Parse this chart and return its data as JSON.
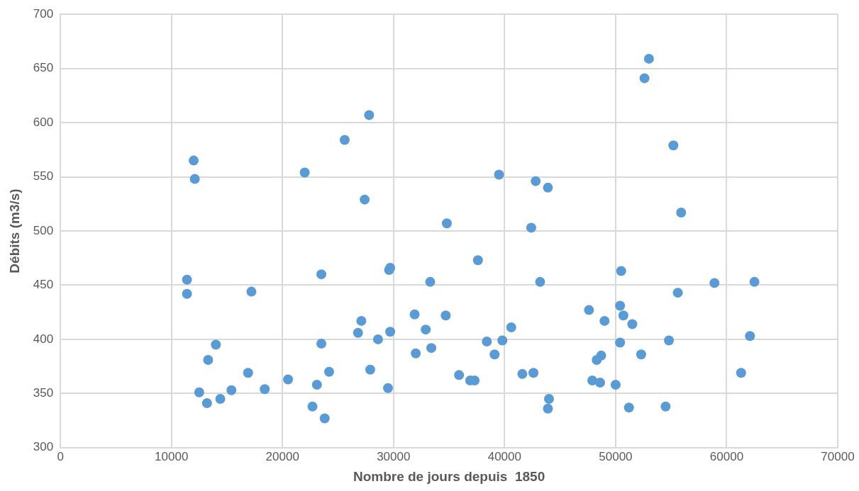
{
  "chart_data": {
    "type": "scatter",
    "xlabel": "Nombre de jours depuis  1850",
    "ylabel": "Débits (m3/s)",
    "xlim": [
      0,
      70000
    ],
    "xticks": [
      0,
      10000,
      20000,
      30000,
      40000,
      50000,
      60000,
      70000
    ],
    "ylim": [
      300,
      700
    ],
    "yticks": [
      300,
      350,
      400,
      450,
      500,
      550,
      600,
      650,
      700
    ],
    "grid": true,
    "legend": false,
    "marker": "circle",
    "series": [
      {
        "color": "#5b9bd5",
        "x": [
          11400,
          11400,
          12000,
          12100,
          12500,
          13200,
          13300,
          14000,
          14400,
          15400,
          16900,
          17200,
          18400,
          20500,
          22000,
          22700,
          23100,
          23500,
          23500,
          23800,
          24200,
          25600,
          26800,
          27100,
          27400,
          27800,
          27900,
          28600,
          29500,
          29600,
          29700,
          29700,
          31900,
          32000,
          32900,
          33300,
          33400,
          34700,
          34800,
          35900,
          36900,
          37300,
          37600,
          38400,
          39100,
          39500,
          39800,
          40600,
          41600,
          42400,
          42600,
          42800,
          43200,
          43900,
          44000,
          43900,
          47600,
          47900,
          48300,
          48600,
          48700,
          49000,
          50000,
          50400,
          50400,
          50500,
          50700,
          51200,
          51500,
          52300,
          52600,
          53000,
          54500,
          54800,
          55200,
          55600,
          55900,
          58900,
          61300,
          62100,
          62500
        ],
        "values": [
          455,
          442,
          565,
          548,
          351,
          341,
          381,
          395,
          345,
          353,
          369,
          444,
          354,
          363,
          554,
          338,
          358,
          396,
          460,
          327,
          370,
          584,
          406,
          417,
          529,
          607,
          372,
          400,
          355,
          464,
          466,
          407,
          423,
          387,
          409,
          453,
          392,
          422,
          507,
          367,
          362,
          362,
          473,
          398,
          386,
          552,
          399,
          411,
          368,
          503,
          369,
          546,
          453,
          540,
          345,
          336,
          427,
          362,
          381,
          360,
          385,
          417,
          358,
          397,
          431,
          463,
          422,
          337,
          414,
          386,
          641,
          659,
          338,
          399,
          579,
          443,
          517,
          452,
          369,
          403,
          453
        ]
      }
    ]
  }
}
